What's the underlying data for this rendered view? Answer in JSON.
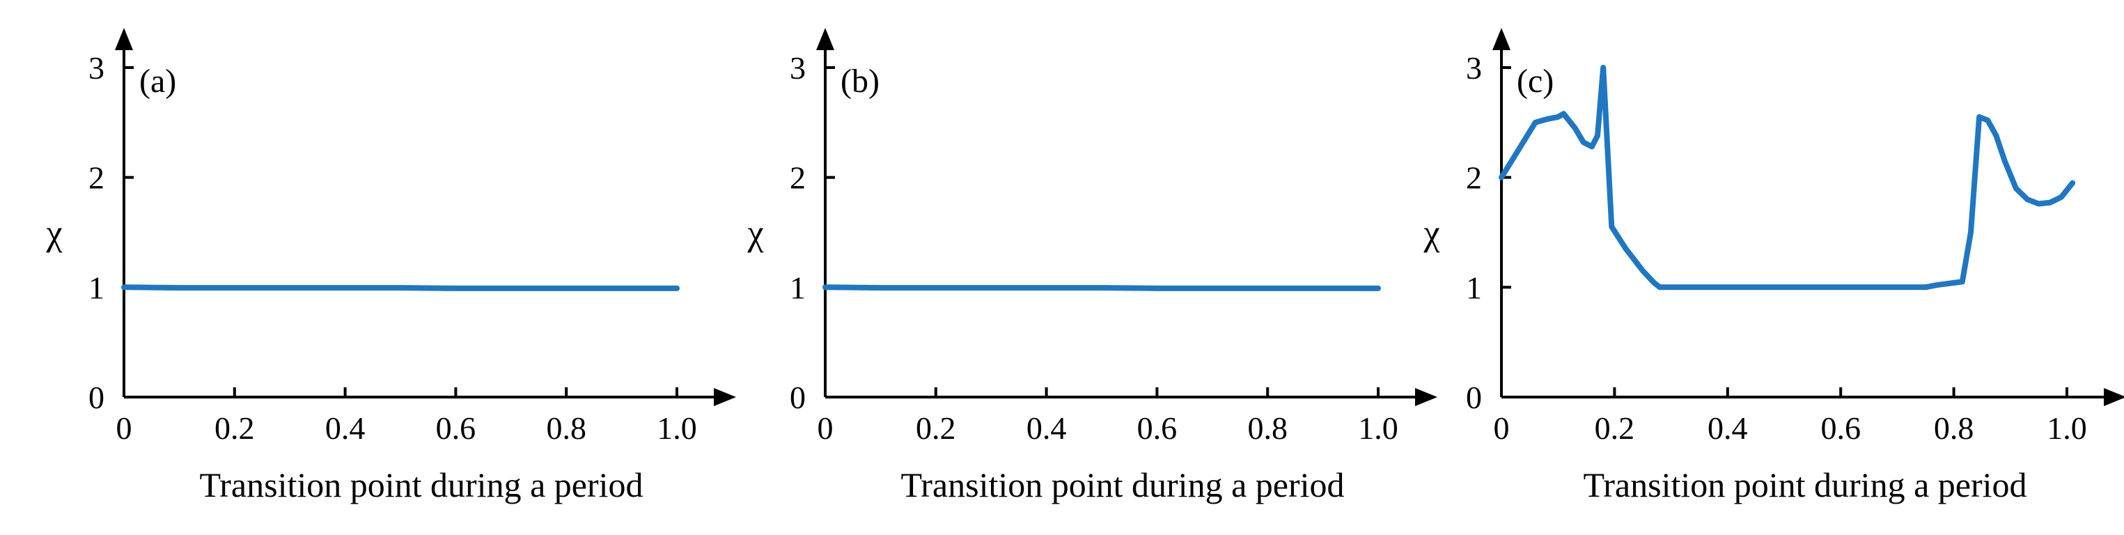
{
  "colors": {
    "series": "#1f77c4",
    "axis": "#000000"
  },
  "chart_data": [
    {
      "type": "line",
      "panel_label": "(a)",
      "xlabel": "Transition point during a period",
      "ylabel": "χ",
      "xlim": [
        0,
        1.0
      ],
      "ylim": [
        0,
        3
      ],
      "xticks": [
        "0",
        "0.2",
        "0.4",
        "0.6",
        "0.8",
        "1.0"
      ],
      "yticks": [
        "0",
        "1",
        "2",
        "3"
      ],
      "grid": false,
      "series": [
        {
          "x": [
            0,
            0.1,
            0.2,
            0.3,
            0.4,
            0.5,
            0.6,
            0.7,
            0.8,
            0.9,
            1.0
          ],
          "y": [
            1.0,
            0.995,
            0.995,
            0.995,
            0.995,
            0.995,
            0.99,
            0.99,
            0.99,
            0.99,
            0.99
          ]
        }
      ]
    },
    {
      "type": "line",
      "panel_label": "(b)",
      "xlabel": "Transition point during a period",
      "ylabel": "χ",
      "xlim": [
        0,
        1.0
      ],
      "ylim": [
        0,
        3
      ],
      "xticks": [
        "0",
        "0.2",
        "0.4",
        "0.6",
        "0.8",
        "1.0"
      ],
      "yticks": [
        "0",
        "1",
        "2",
        "3"
      ],
      "grid": false,
      "series": [
        {
          "x": [
            0,
            0.1,
            0.2,
            0.3,
            0.4,
            0.5,
            0.6,
            0.7,
            0.8,
            0.9,
            1.0
          ],
          "y": [
            1.0,
            0.995,
            0.995,
            0.995,
            0.995,
            0.995,
            0.99,
            0.99,
            0.99,
            0.99,
            0.99
          ]
        }
      ]
    },
    {
      "type": "line",
      "panel_label": "(c)",
      "xlabel": "Transition point during a period",
      "ylabel": "χ",
      "xlim": [
        0,
        1.0
      ],
      "ylim": [
        0,
        3
      ],
      "xticks": [
        "0",
        "0.2",
        "0.4",
        "0.6",
        "0.8",
        "1.0"
      ],
      "yticks": [
        "0",
        "1",
        "2",
        "3"
      ],
      "grid": false,
      "series": [
        {
          "x": [
            0,
            0.03,
            0.06,
            0.08,
            0.1,
            0.11,
            0.13,
            0.145,
            0.16,
            0.17,
            0.18,
            0.195,
            0.22,
            0.25,
            0.27,
            0.28,
            0.5,
            0.75,
            0.77,
            0.8,
            0.815,
            0.83,
            0.845,
            0.86,
            0.875,
            0.89,
            0.91,
            0.93,
            0.95,
            0.97,
            0.99,
            1.01
          ],
          "y": [
            2.0,
            2.25,
            2.5,
            2.53,
            2.55,
            2.58,
            2.45,
            2.32,
            2.28,
            2.38,
            3.0,
            1.55,
            1.35,
            1.15,
            1.04,
            1.0,
            1.0,
            1.0,
            1.02,
            1.04,
            1.05,
            1.5,
            2.55,
            2.52,
            2.38,
            2.15,
            1.9,
            1.8,
            1.76,
            1.77,
            1.82,
            1.95
          ]
        }
      ]
    }
  ]
}
